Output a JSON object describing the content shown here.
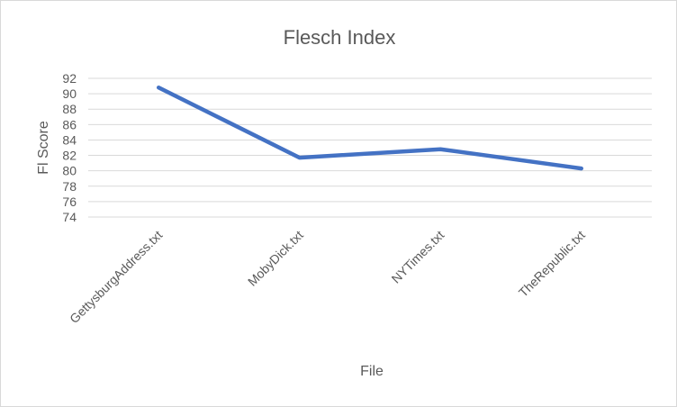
{
  "chart_data": {
    "type": "line",
    "title": "Flesch Index",
    "xlabel": "File",
    "ylabel": "Fl Score",
    "categories": [
      "GettysburgAddress.txt",
      "MobyDick.txt",
      "NYTimes.txt",
      "TheRepublic.txt"
    ],
    "series": [
      {
        "values": [
          90.8,
          81.7,
          82.8,
          80.3
        ],
        "color": "#4472c4"
      }
    ],
    "yticks": [
      74,
      76,
      78,
      80,
      82,
      84,
      86,
      88,
      90,
      92
    ],
    "ylim": [
      74,
      92
    ],
    "grid": true,
    "legend": "none"
  }
}
